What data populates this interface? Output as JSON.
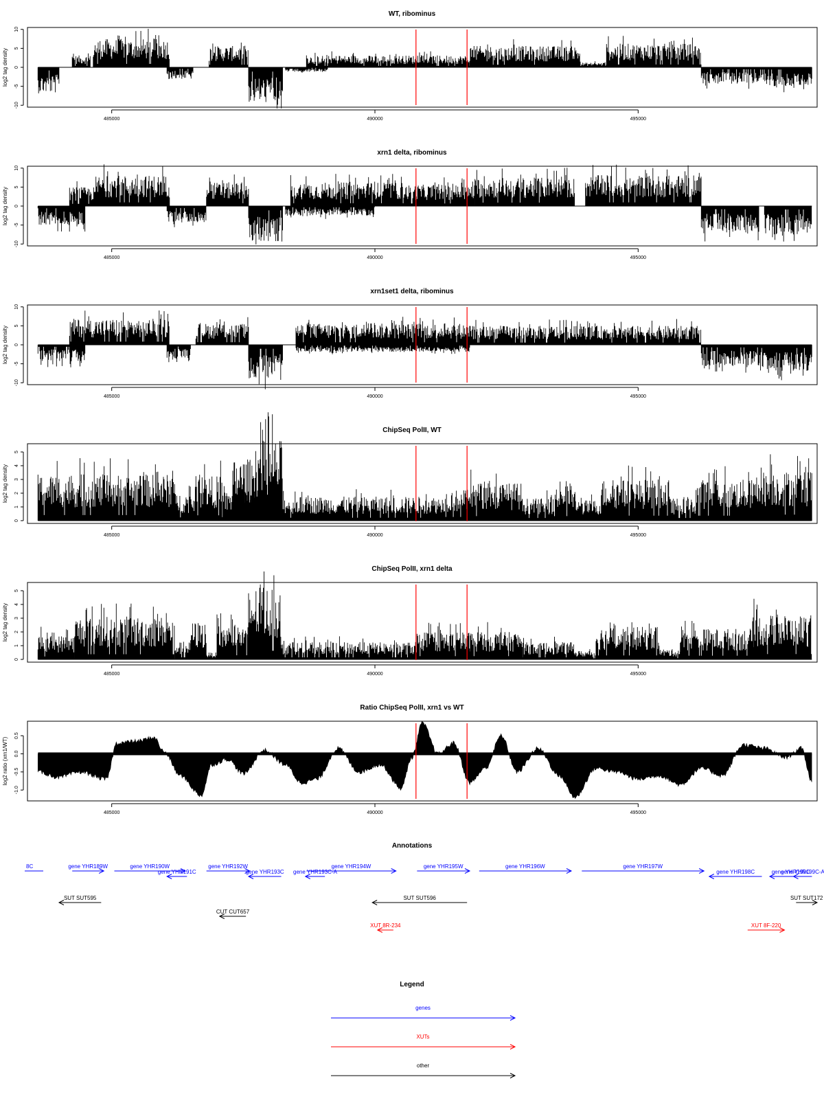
{
  "colors": {
    "genes": "#0000ff",
    "xuts": "#ff0000",
    "other": "#000000",
    "marker": "#ff0000",
    "bars": "#000000"
  },
  "xaxis": {
    "range": [
      483400,
      498400
    ],
    "ticks": [
      485000,
      490000,
      495000
    ],
    "tick_labels": [
      "485000",
      "490000",
      "495000"
    ]
  },
  "markers": {
    "positions": [
      490780,
      491750
    ]
  },
  "chart_data": [
    {
      "type": "bar",
      "title": "WT, ribominus",
      "ylabel": "log2 tag density",
      "ylim": [
        -10.5,
        10.5
      ],
      "yticks": [
        -10,
        -5,
        0,
        5,
        10
      ],
      "ytick_labels": [
        "-10",
        "-5",
        "0",
        "5",
        "10"
      ],
      "segments": [
        {
          "start": 483600,
          "end": 484000,
          "sign": -1,
          "level": 5.5
        },
        {
          "start": 484250,
          "end": 484600,
          "sign": 1,
          "level": 2.5
        },
        {
          "start": 484650,
          "end": 486100,
          "sign": 1,
          "level": 6
        },
        {
          "start": 486050,
          "end": 486550,
          "sign": -1,
          "level": 2.5
        },
        {
          "start": 486850,
          "end": 487600,
          "sign": 1,
          "level": 4.5
        },
        {
          "start": 487600,
          "end": 488250,
          "sign": -1,
          "level": 7.5
        },
        {
          "start": 488300,
          "end": 489100,
          "sign": -1,
          "level": 1
        },
        {
          "start": 488700,
          "end": 490800,
          "sign": 1,
          "level": 2.5
        },
        {
          "start": 490800,
          "end": 491800,
          "sign": 1,
          "level": 2.5
        },
        {
          "start": 491800,
          "end": 493900,
          "sign": 1,
          "level": 4.5
        },
        {
          "start": 493900,
          "end": 494400,
          "sign": 1,
          "level": 1
        },
        {
          "start": 494400,
          "end": 496200,
          "sign": 1,
          "level": 5
        },
        {
          "start": 496200,
          "end": 497300,
          "sign": -1,
          "level": 3.5
        },
        {
          "start": 497300,
          "end": 498300,
          "sign": -1,
          "level": 4
        }
      ]
    },
    {
      "type": "bar",
      "title": "xrn1 delta, ribominus",
      "ylabel": "log2 tag density",
      "ylim": [
        -10.5,
        10.5
      ],
      "yticks": [
        -10,
        -5,
        0,
        5,
        10
      ],
      "ytick_labels": [
        "-10",
        "-5",
        "0",
        "5",
        "10"
      ],
      "segments": [
        {
          "start": 483600,
          "end": 484500,
          "sign": -1,
          "level": 4
        },
        {
          "start": 484200,
          "end": 484700,
          "sign": 1,
          "level": 4
        },
        {
          "start": 484700,
          "end": 486100,
          "sign": 1,
          "level": 6.5
        },
        {
          "start": 486050,
          "end": 486800,
          "sign": -1,
          "level": 3.5
        },
        {
          "start": 486800,
          "end": 487600,
          "sign": 1,
          "level": 5
        },
        {
          "start": 487600,
          "end": 488250,
          "sign": -1,
          "level": 7.5
        },
        {
          "start": 488300,
          "end": 490000,
          "sign": -1,
          "level": 2
        },
        {
          "start": 488400,
          "end": 490600,
          "sign": 1,
          "level": 5
        },
        {
          "start": 490600,
          "end": 491900,
          "sign": 1,
          "level": 4.5
        },
        {
          "start": 491900,
          "end": 493800,
          "sign": 1,
          "level": 6
        },
        {
          "start": 494000,
          "end": 496200,
          "sign": 1,
          "level": 6.5
        },
        {
          "start": 496200,
          "end": 497300,
          "sign": -1,
          "level": 5.5
        },
        {
          "start": 497400,
          "end": 498300,
          "sign": -1,
          "level": 6
        }
      ]
    },
    {
      "type": "bar",
      "title": "xrn1set1 delta, ribominus",
      "ylabel": "log2 tag density",
      "ylim": [
        -10.5,
        10.5
      ],
      "yticks": [
        -10,
        -5,
        0,
        5,
        10
      ],
      "ytick_labels": [
        "-10",
        "-5",
        "0",
        "5",
        "10"
      ],
      "segments": [
        {
          "start": 483600,
          "end": 484500,
          "sign": -1,
          "level": 3.5
        },
        {
          "start": 484200,
          "end": 486100,
          "sign": 1,
          "level": 5.5
        },
        {
          "start": 486050,
          "end": 486500,
          "sign": -1,
          "level": 3
        },
        {
          "start": 486600,
          "end": 487600,
          "sign": 1,
          "level": 4.5
        },
        {
          "start": 487600,
          "end": 488250,
          "sign": -1,
          "level": 7
        },
        {
          "start": 488500,
          "end": 491800,
          "sign": 1,
          "level": 4.5
        },
        {
          "start": 488500,
          "end": 491800,
          "sign": -1,
          "level": 1.5
        },
        {
          "start": 491800,
          "end": 496200,
          "sign": 1,
          "level": 4
        },
        {
          "start": 496200,
          "end": 497300,
          "sign": -1,
          "level": 4.5
        },
        {
          "start": 497300,
          "end": 498300,
          "sign": -1,
          "level": 5.5
        }
      ]
    },
    {
      "type": "bar",
      "title": "ChipSeq PolII, WT",
      "ylabel": "log2 tag density",
      "ylim": [
        -0.2,
        5.6
      ],
      "yticks": [
        0,
        1,
        2,
        3,
        4,
        5
      ],
      "ytick_labels": [
        "0",
        "1",
        "2",
        "3",
        "4",
        "5"
      ],
      "segments": [
        {
          "start": 483600,
          "end": 486200,
          "sign": 1,
          "level": 2.7
        },
        {
          "start": 486200,
          "end": 486600,
          "sign": 1,
          "level": 1.6
        },
        {
          "start": 486600,
          "end": 487100,
          "sign": 1,
          "level": 2.6
        },
        {
          "start": 487100,
          "end": 487700,
          "sign": 1,
          "level": 1.7
        },
        {
          "start": 487300,
          "end": 487700,
          "sign": 1,
          "level": 3.6
        },
        {
          "start": 487700,
          "end": 488250,
          "sign": 1,
          "level": 4.7
        },
        {
          "start": 488250,
          "end": 490800,
          "sign": 1,
          "level": 1.4
        },
        {
          "start": 490800,
          "end": 491300,
          "sign": 1,
          "level": 1.4
        },
        {
          "start": 491300,
          "end": 491800,
          "sign": 1,
          "level": 1.8
        },
        {
          "start": 491800,
          "end": 492800,
          "sign": 1,
          "level": 2.2
        },
        {
          "start": 492800,
          "end": 493400,
          "sign": 1,
          "level": 1.3
        },
        {
          "start": 493400,
          "end": 493800,
          "sign": 1,
          "level": 2.2
        },
        {
          "start": 493800,
          "end": 494300,
          "sign": 1,
          "level": 1.2
        },
        {
          "start": 494300,
          "end": 495600,
          "sign": 1,
          "level": 2.4
        },
        {
          "start": 495600,
          "end": 496100,
          "sign": 1,
          "level": 1.3
        },
        {
          "start": 496100,
          "end": 497300,
          "sign": 1,
          "level": 2.4
        },
        {
          "start": 497300,
          "end": 498300,
          "sign": 1,
          "level": 2.9
        }
      ]
    },
    {
      "type": "bar",
      "title": "ChipSeq PolII, xrn1 delta",
      "ylabel": "log2 tag density",
      "ylim": [
        -0.2,
        5.6
      ],
      "yticks": [
        0,
        1,
        2,
        3,
        4,
        5
      ],
      "ytick_labels": [
        "0",
        "1",
        "2",
        "3",
        "4",
        "5"
      ],
      "segments": [
        {
          "start": 483600,
          "end": 484300,
          "sign": 1,
          "level": 1.4
        },
        {
          "start": 484300,
          "end": 486200,
          "sign": 1,
          "level": 2.5
        },
        {
          "start": 486200,
          "end": 486500,
          "sign": 1,
          "level": 1.0
        },
        {
          "start": 486500,
          "end": 486800,
          "sign": 1,
          "level": 2.2
        },
        {
          "start": 486800,
          "end": 487000,
          "sign": 1,
          "level": 0.4
        },
        {
          "start": 487000,
          "end": 487600,
          "sign": 1,
          "level": 2.0
        },
        {
          "start": 487600,
          "end": 488200,
          "sign": 1,
          "level": 4.2
        },
        {
          "start": 488200,
          "end": 490800,
          "sign": 1,
          "level": 1.0
        },
        {
          "start": 490800,
          "end": 491800,
          "sign": 1,
          "level": 1.6
        },
        {
          "start": 491800,
          "end": 492800,
          "sign": 1,
          "level": 1.6
        },
        {
          "start": 492800,
          "end": 493800,
          "sign": 1,
          "level": 1.0
        },
        {
          "start": 493800,
          "end": 494200,
          "sign": 1,
          "level": 0.5
        },
        {
          "start": 494200,
          "end": 495400,
          "sign": 1,
          "level": 1.9
        },
        {
          "start": 495400,
          "end": 495800,
          "sign": 1,
          "level": 0.6
        },
        {
          "start": 495800,
          "end": 497200,
          "sign": 1,
          "level": 1.8
        },
        {
          "start": 497200,
          "end": 498300,
          "sign": 1,
          "level": 2.6
        }
      ]
    },
    {
      "type": "area",
      "title": "Ratio ChipSeq PolII, xrn1 vs WT",
      "ylabel": "log2 ratio (xrn1/WT)",
      "ylim": [
        -1.3,
        0.9
      ],
      "yticks": [
        -1.0,
        -0.5,
        0.0,
        0.5
      ],
      "ytick_labels": [
        "-1.0",
        "-0.5",
        "0.0",
        "0.5"
      ],
      "x": [
        483600,
        484000,
        484400,
        484900,
        485100,
        485500,
        485800,
        486000,
        486300,
        486700,
        486900,
        487200,
        487500,
        487900,
        488300,
        488600,
        488900,
        489300,
        489700,
        490100,
        490500,
        490700,
        490900,
        491200,
        491500,
        491800,
        492100,
        492400,
        492700,
        493100,
        493500,
        493800,
        494200,
        494600,
        495000,
        495400,
        495800,
        496200,
        496600,
        497000,
        497400,
        497800,
        498100,
        498300
      ],
      "y": [
        -0.5,
        -0.65,
        -0.5,
        -0.7,
        0.3,
        0.35,
        0.45,
        0.05,
        -0.6,
        -1.15,
        -0.3,
        -0.15,
        -0.55,
        0.1,
        -0.3,
        -0.8,
        -0.7,
        0.15,
        -0.5,
        -0.3,
        -0.95,
        -0.1,
        0.85,
        0.0,
        0.3,
        -0.8,
        -0.4,
        0.5,
        -0.5,
        0.15,
        -0.6,
        -1.2,
        -0.4,
        -0.5,
        -0.7,
        -0.6,
        -0.85,
        -0.4,
        -0.6,
        0.25,
        0.15,
        -0.1,
        0.15,
        -0.75
      ]
    }
  ],
  "annotations": {
    "title": "Annotations",
    "items": [
      {
        "label": "8C",
        "type": "genes",
        "start": 483300,
        "end": 483700,
        "dir": "none",
        "row": 0
      },
      {
        "label": "gene YHR189W",
        "type": "genes",
        "start": 484250,
        "end": 484850,
        "dir": "right",
        "row": 0
      },
      {
        "label": "gene YHR190W",
        "type": "genes",
        "start": 485050,
        "end": 486400,
        "dir": "right",
        "row": 0
      },
      {
        "label": "gene YHR191C",
        "type": "genes",
        "start": 486050,
        "end": 486430,
        "dir": "left",
        "row": 1
      },
      {
        "label": "gene YHR192W",
        "type": "genes",
        "start": 486800,
        "end": 487620,
        "dir": "right",
        "row": 0
      },
      {
        "label": "gene YHR193C",
        "type": "genes",
        "start": 487600,
        "end": 488220,
        "dir": "left",
        "row": 1
      },
      {
        "label": "gene YHR193C-A",
        "type": "genes",
        "start": 488680,
        "end": 489050,
        "dir": "left",
        "row": 1
      },
      {
        "label": "gene YHR194W",
        "type": "genes",
        "start": 488700,
        "end": 490400,
        "dir": "right",
        "row": 0
      },
      {
        "label": "gene YHR195W",
        "type": "genes",
        "start": 490800,
        "end": 491800,
        "dir": "right",
        "row": 0
      },
      {
        "label": "gene YHR196W",
        "type": "genes",
        "start": 491980,
        "end": 493730,
        "dir": "right",
        "row": 0
      },
      {
        "label": "gene YHR197W",
        "type": "genes",
        "start": 493930,
        "end": 496250,
        "dir": "right",
        "row": 0
      },
      {
        "label": "gene YHR198C",
        "type": "genes",
        "start": 496350,
        "end": 497350,
        "dir": "left",
        "row": 1
      },
      {
        "label": "gene YHR199C",
        "type": "genes",
        "start": 497500,
        "end": 498300,
        "dir": "left",
        "row": 1
      },
      {
        "label": "gene YHR199C-A",
        "type": "genes",
        "start": 497950,
        "end": 498300,
        "dir": "left",
        "row": 1
      },
      {
        "label": "SUT SUT595",
        "type": "other",
        "start": 484000,
        "end": 484800,
        "dir": "left",
        "row": 2
      },
      {
        "label": "SUT SUT596",
        "type": "other",
        "start": 489950,
        "end": 491750,
        "dir": "left",
        "row": 2
      },
      {
        "label": "SUT SUT172",
        "type": "other",
        "start": 498000,
        "end": 498400,
        "dir": "right",
        "row": 2
      },
      {
        "label": "CUT CUT657",
        "type": "other",
        "start": 487050,
        "end": 487550,
        "dir": "left",
        "row": 3
      },
      {
        "label": "XUT 8R-234",
        "type": "xuts",
        "start": 490050,
        "end": 490350,
        "dir": "left",
        "row": 4
      },
      {
        "label": "XUT 8F-220",
        "type": "xuts",
        "start": 497080,
        "end": 497780,
        "dir": "right",
        "row": 4
      }
    ]
  },
  "legend": {
    "title": "Legend",
    "items": [
      {
        "label": "genes",
        "type": "genes"
      },
      {
        "label": "XUTs",
        "type": "xuts"
      },
      {
        "label": "other",
        "type": "other"
      }
    ]
  }
}
